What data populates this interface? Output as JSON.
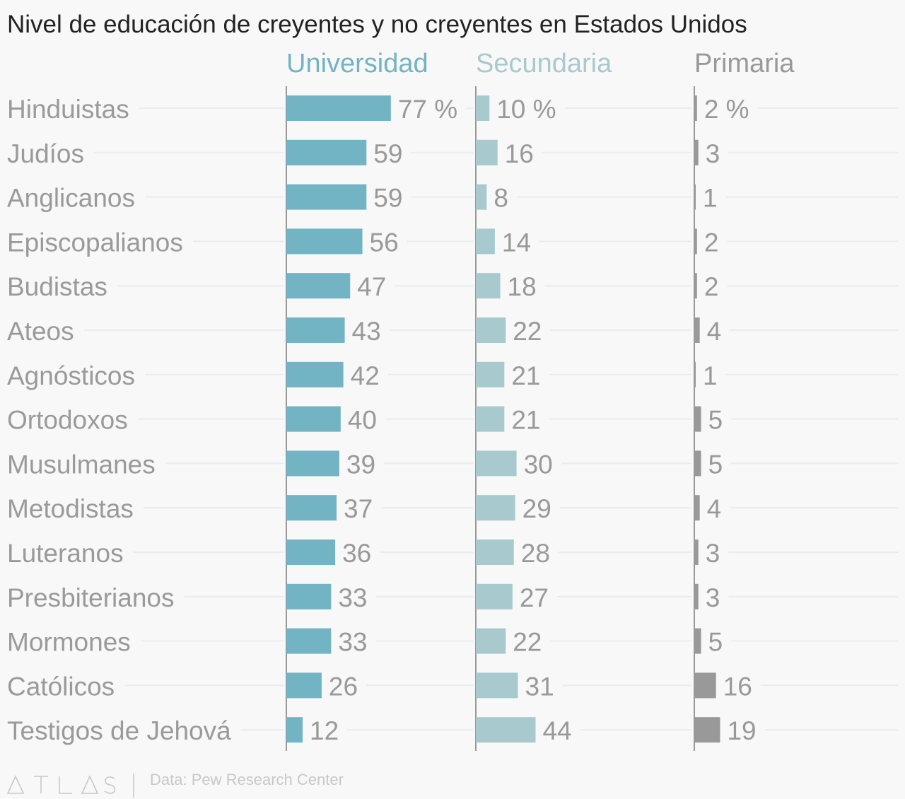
{
  "chart_data": {
    "type": "bar",
    "title": "Nivel de educación de creyentes y no creyentes en Estados Unidos",
    "unit_suffix": " %",
    "categories": [
      "Hinduistas",
      "Judíos",
      "Anglicanos",
      "Episcopalianos",
      "Budistas",
      "Ateos",
      "Agnósticos",
      "Ortodoxos",
      "Musulmanes",
      "Metodistas",
      "Luteranos",
      "Presbiterianos",
      "Mormones",
      "Católicos",
      "Testigos de Jehová"
    ],
    "series": [
      {
        "name": "Universidad",
        "color": "#72b3c4",
        "values": [
          77,
          59,
          59,
          56,
          47,
          43,
          42,
          40,
          39,
          37,
          36,
          33,
          33,
          26,
          12
        ]
      },
      {
        "name": "Secundaria",
        "color": "#a8c9cd",
        "values": [
          10,
          16,
          8,
          14,
          18,
          22,
          21,
          21,
          30,
          29,
          28,
          27,
          22,
          31,
          44
        ]
      },
      {
        "name": "Primaria",
        "color": "#999999",
        "values": [
          2,
          3,
          1,
          2,
          2,
          4,
          1,
          5,
          5,
          4,
          3,
          3,
          5,
          16,
          19
        ]
      }
    ],
    "grid": true
  },
  "footer": {
    "logo": "ATLAS",
    "source": "Data: Pew Research Center"
  }
}
